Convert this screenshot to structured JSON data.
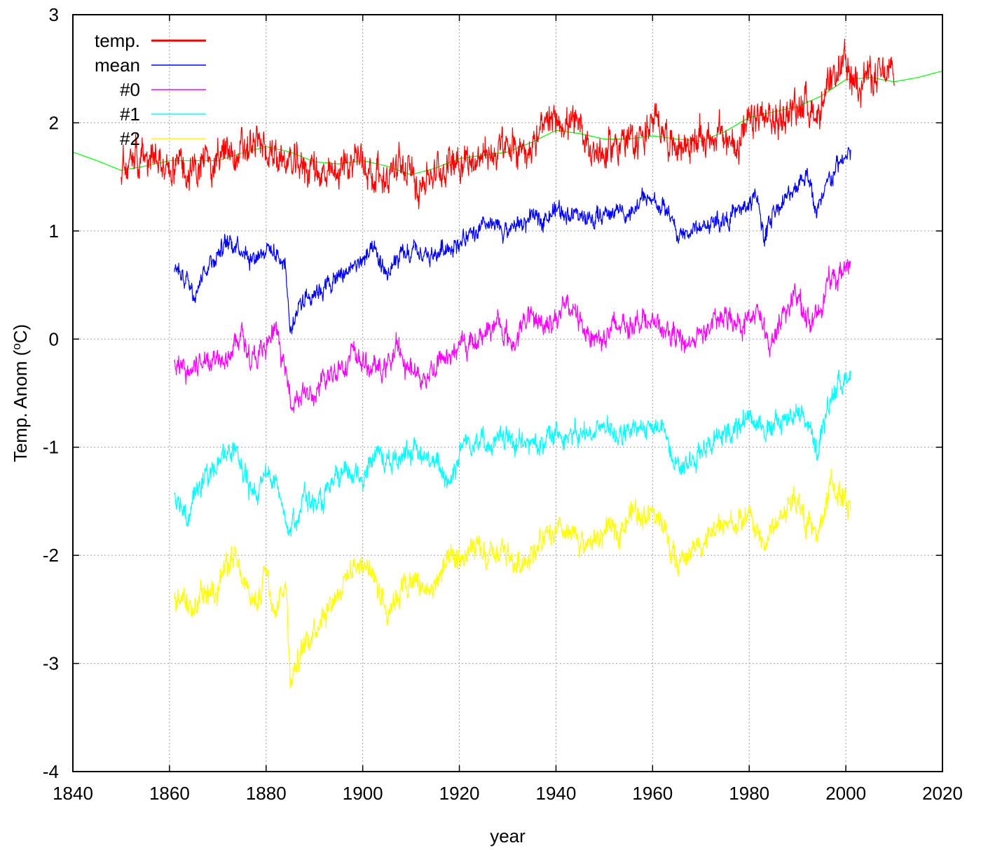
{
  "chart_data": {
    "type": "line",
    "title": "",
    "xlabel": "year",
    "ylabel": "Temp. Anom (",
    "ylabel_sup": "o",
    "ylabel_tail": "C)",
    "xlim": [
      1840,
      2020
    ],
    "ylim": [
      -4,
      3
    ],
    "xticks": [
      1840,
      1860,
      1880,
      1900,
      1920,
      1940,
      1960,
      1980,
      2000,
      2020
    ],
    "yticks": [
      -4,
      -3,
      -2,
      -1,
      0,
      1,
      2,
      3
    ],
    "grid": true,
    "legend_position": "top-left",
    "series": [
      {
        "name": "temp.",
        "color": "#ff0000",
        "style": "noisy",
        "noise": 0.17,
        "x": [
          1850,
          1852,
          1855,
          1858,
          1862,
          1865,
          1868,
          1871,
          1874,
          1878,
          1880,
          1883,
          1886,
          1890,
          1893,
          1896,
          1899,
          1902,
          1905,
          1908,
          1911,
          1913,
          1916,
          1919,
          1922,
          1926,
          1929,
          1932,
          1935,
          1938,
          1941,
          1944,
          1947,
          1950,
          1953,
          1956,
          1959,
          1962,
          1964,
          1967,
          1970,
          1973,
          1976,
          1979,
          1982,
          1985,
          1988,
          1991,
          1994,
          1997,
          1999,
          2001,
          2004,
          2007,
          2010
        ],
        "y": [
          1.55,
          1.7,
          1.75,
          1.6,
          1.6,
          1.55,
          1.65,
          1.7,
          1.7,
          1.8,
          1.75,
          1.65,
          1.6,
          1.6,
          1.45,
          1.6,
          1.7,
          1.55,
          1.5,
          1.6,
          1.45,
          1.5,
          1.55,
          1.7,
          1.65,
          1.7,
          1.75,
          1.75,
          1.8,
          1.95,
          2.05,
          1.95,
          1.8,
          1.7,
          1.85,
          1.8,
          1.95,
          2.0,
          1.8,
          1.8,
          1.85,
          1.9,
          1.8,
          1.9,
          2.05,
          2.0,
          2.1,
          2.2,
          2.1,
          2.3,
          2.55,
          2.4,
          2.45,
          2.4,
          2.45
        ]
      },
      {
        "name": "mean",
        "color": "#0000ff",
        "style": "noisy",
        "noise": 0.09,
        "x": [
          1861,
          1863,
          1865,
          1868,
          1871,
          1874,
          1877,
          1880,
          1883,
          1884,
          1885,
          1887,
          1890,
          1893,
          1896,
          1899,
          1902,
          1905,
          1908,
          1911,
          1914,
          1917,
          1920,
          1923,
          1926,
          1929,
          1932,
          1935,
          1938,
          1941,
          1944,
          1947,
          1950,
          1953,
          1956,
          1958,
          1961,
          1963,
          1965,
          1968,
          1971,
          1974,
          1977,
          1980,
          1982,
          1983,
          1985,
          1988,
          1990,
          1992,
          1994,
          1997,
          1999,
          2001
        ],
        "y": [
          0.65,
          0.6,
          0.45,
          0.7,
          0.85,
          0.9,
          0.75,
          0.85,
          0.75,
          0.7,
          0.05,
          0.35,
          0.45,
          0.5,
          0.6,
          0.7,
          0.8,
          0.6,
          0.75,
          0.8,
          0.75,
          0.85,
          0.9,
          0.95,
          1.05,
          1.0,
          1.05,
          1.1,
          1.15,
          1.2,
          1.15,
          1.1,
          1.15,
          1.2,
          1.15,
          1.3,
          1.25,
          1.2,
          0.95,
          1.0,
          1.05,
          1.1,
          1.15,
          1.25,
          1.3,
          0.9,
          1.2,
          1.3,
          1.45,
          1.55,
          1.15,
          1.5,
          1.65,
          1.7
        ]
      },
      {
        "name": "#0",
        "color": "#ff00ff",
        "style": "noisy",
        "noise": 0.11,
        "x": [
          1861,
          1864,
          1867,
          1870,
          1873,
          1875,
          1877,
          1880,
          1882,
          1885,
          1887,
          1890,
          1892,
          1895,
          1898,
          1901,
          1904,
          1907,
          1910,
          1913,
          1916,
          1919,
          1922,
          1925,
          1928,
          1931,
          1934,
          1937,
          1940,
          1943,
          1946,
          1949,
          1952,
          1955,
          1958,
          1961,
          1964,
          1967,
          1970,
          1973,
          1976,
          1979,
          1982,
          1984,
          1987,
          1990,
          1993,
          1996,
          1998,
          2001
        ],
        "y": [
          -0.25,
          -0.3,
          -0.2,
          -0.15,
          -0.1,
          0.05,
          -0.2,
          -0.1,
          0.1,
          -0.55,
          -0.5,
          -0.55,
          -0.4,
          -0.25,
          -0.15,
          -0.25,
          -0.3,
          -0.1,
          -0.3,
          -0.35,
          -0.2,
          -0.1,
          -0.05,
          0.05,
          0.15,
          -0.05,
          0.2,
          0.15,
          0.2,
          0.3,
          0.1,
          0.0,
          0.1,
          0.15,
          0.2,
          0.1,
          0.05,
          -0.05,
          0.05,
          0.15,
          0.2,
          0.15,
          0.25,
          -0.1,
          0.25,
          0.4,
          0.1,
          0.5,
          0.55,
          0.75
        ]
      },
      {
        "name": "#1",
        "color": "#00ffff",
        "style": "noisy",
        "noise": 0.11,
        "x": [
          1861,
          1864,
          1867,
          1870,
          1873,
          1876,
          1878,
          1880,
          1882,
          1885,
          1888,
          1891,
          1894,
          1897,
          1900,
          1903,
          1906,
          1909,
          1912,
          1915,
          1918,
          1921,
          1924,
          1927,
          1930,
          1933,
          1936,
          1939,
          1942,
          1945,
          1948,
          1951,
          1954,
          1957,
          1960,
          1963,
          1966,
          1969,
          1972,
          1975,
          1978,
          1981,
          1984,
          1987,
          1990,
          1992,
          1994,
          1997,
          2001
        ],
        "y": [
          -1.45,
          -1.6,
          -1.3,
          -1.15,
          -1.0,
          -1.35,
          -1.45,
          -1.2,
          -1.35,
          -1.75,
          -1.45,
          -1.55,
          -1.35,
          -1.25,
          -1.25,
          -1.05,
          -1.15,
          -1.0,
          -1.1,
          -1.15,
          -1.3,
          -0.95,
          -0.9,
          -1.0,
          -0.9,
          -1.0,
          -0.95,
          -0.9,
          -0.85,
          -0.9,
          -0.85,
          -0.8,
          -0.9,
          -0.85,
          -0.8,
          -0.9,
          -1.2,
          -1.05,
          -0.95,
          -0.9,
          -0.75,
          -0.7,
          -0.85,
          -0.75,
          -0.65,
          -0.75,
          -1.1,
          -0.5,
          -0.3
        ]
      },
      {
        "name": "#2",
        "color": "#ffff00",
        "style": "noisy",
        "noise": 0.12,
        "x": [
          1861,
          1864,
          1867,
          1870,
          1873,
          1876,
          1878,
          1880,
          1882,
          1884,
          1885,
          1887,
          1890,
          1893,
          1896,
          1899,
          1902,
          1905,
          1908,
          1911,
          1914,
          1917,
          1920,
          1923,
          1926,
          1929,
          1932,
          1935,
          1938,
          1941,
          1944,
          1947,
          1950,
          1953,
          1956,
          1959,
          1962,
          1965,
          1968,
          1971,
          1974,
          1977,
          1980,
          1983,
          1985,
          1988,
          1990,
          1992,
          1994,
          1997,
          2001
        ],
        "y": [
          -2.35,
          -2.55,
          -2.4,
          -2.25,
          -2.0,
          -2.35,
          -2.45,
          -2.1,
          -2.5,
          -2.2,
          -3.1,
          -2.95,
          -2.65,
          -2.45,
          -2.25,
          -2.05,
          -2.15,
          -2.5,
          -2.3,
          -2.25,
          -2.35,
          -2.1,
          -2.05,
          -1.95,
          -2.05,
          -1.95,
          -2.1,
          -1.95,
          -1.85,
          -1.8,
          -1.85,
          -1.9,
          -1.8,
          -1.75,
          -1.6,
          -1.6,
          -1.7,
          -2.1,
          -1.95,
          -1.85,
          -1.75,
          -1.7,
          -1.65,
          -1.9,
          -1.75,
          -1.55,
          -1.45,
          -1.7,
          -1.85,
          -1.35,
          -1.55
        ]
      },
      {
        "name": "",
        "color": "#00ff00",
        "style": "smooth",
        "x": [
          1840,
          1845,
          1850,
          1855,
          1860,
          1865,
          1870,
          1875,
          1880,
          1885,
          1890,
          1895,
          1900,
          1905,
          1910,
          1915,
          1920,
          1925,
          1930,
          1935,
          1940,
          1945,
          1950,
          1955,
          1960,
          1965,
          1970,
          1975,
          1980,
          1985,
          1990,
          1995,
          2000,
          2005,
          2010,
          2015,
          2020
        ],
        "y": [
          1.73,
          1.65,
          1.56,
          1.6,
          1.65,
          1.65,
          1.65,
          1.72,
          1.78,
          1.73,
          1.64,
          1.62,
          1.65,
          1.6,
          1.52,
          1.58,
          1.67,
          1.7,
          1.73,
          1.82,
          1.93,
          1.9,
          1.85,
          1.85,
          1.88,
          1.85,
          1.83,
          1.92,
          2.05,
          2.1,
          2.15,
          2.25,
          2.4,
          2.42,
          2.38,
          2.42,
          2.48
        ]
      }
    ]
  }
}
